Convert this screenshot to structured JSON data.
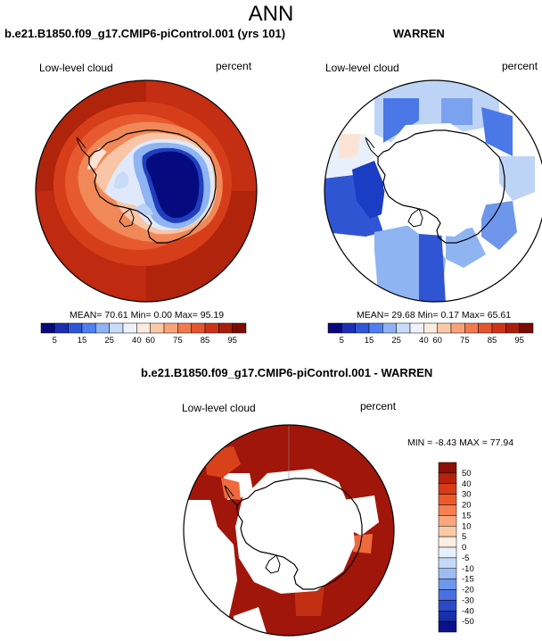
{
  "title": "ANN",
  "panels": {
    "case1": {
      "title": "b.e21.B1850.f09_g17.CMIP6-piControl.001 (yrs 101)",
      "variable": "Low-level cloud",
      "units": "percent",
      "stats": "MEAN=  70.61  Min=   0.00  Max=  95.19"
    },
    "case2": {
      "title": "WARREN",
      "variable": "Low-level cloud",
      "units": "percent",
      "stats": "MEAN=  29.68  Min=   0.17  Max=  65.61"
    },
    "diff": {
      "title": "b.e21.B1850.f09_g17.CMIP6-piControl.001 - WARREN",
      "variable": "Low-level cloud",
      "units": "percent",
      "stats": "MIN =  -8.43 MAX =  77.94"
    }
  },
  "colorbar_main": {
    "labels": [
      "5",
      "15",
      "25",
      "40",
      "60",
      "75",
      "85",
      "95"
    ],
    "colors": [
      "#08087a",
      "#1a2fb4",
      "#2f56d8",
      "#4f7ff0",
      "#8fb2f5",
      "#c8dcfa",
      "#eef3fb",
      "#fcece0",
      "#fbc9a5",
      "#f9a277",
      "#f27a4e",
      "#e6552e",
      "#cc3417",
      "#a81f0c",
      "#7a0c04"
    ]
  },
  "colorbar_diff": {
    "labels": [
      "50",
      "40",
      "30",
      "20",
      "15",
      "10",
      "5",
      "0",
      "-5",
      "-10",
      "-15",
      "-20",
      "-30",
      "-40",
      "-50"
    ],
    "colors": [
      "#8c0f04",
      "#b5230c",
      "#d63a17",
      "#ee5a2c",
      "#f6804f",
      "#f9a67c",
      "#fbc9a8",
      "#fdeee2",
      "#e8f0fb",
      "#c4d8f7",
      "#9dbcf3",
      "#6f97ec",
      "#4870e0",
      "#2a4bc8",
      "#172fa8",
      "#0a128a"
    ]
  },
  "map_colors": {
    "red_dark": "#b0240b",
    "red_mid": "#d63e1a",
    "orange": "#ee6a3c",
    "peach": "#f8b08c",
    "blue_dark": "#050b7e",
    "blue_mid": "#2f55d3",
    "blue_light": "#8fb4f2",
    "blue_pale": "#bed4f6",
    "diff_red": "#a0160a"
  }
}
